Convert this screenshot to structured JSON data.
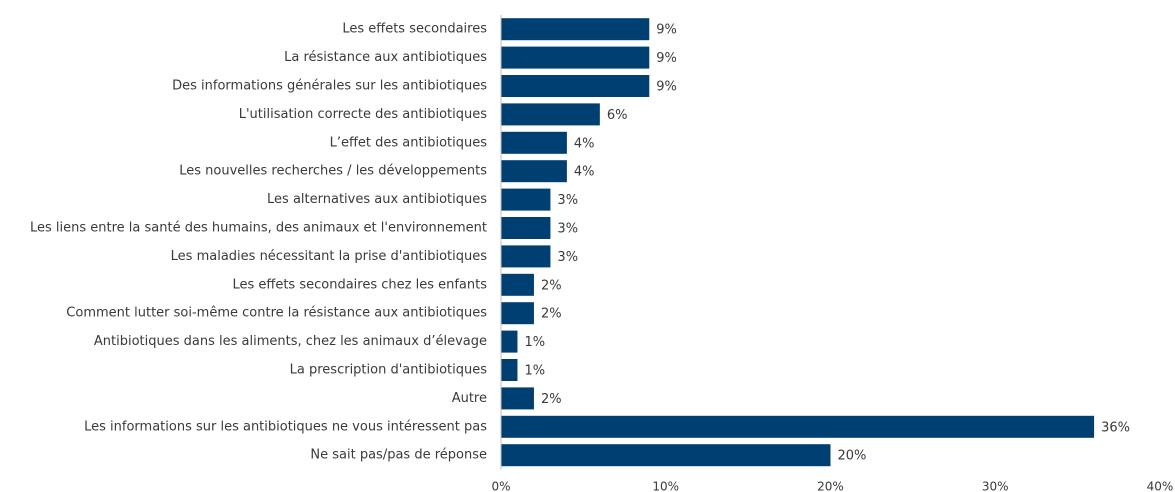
{
  "chart_data": {
    "type": "bar",
    "orientation": "horizontal",
    "categories": [
      "Les effets secondaires",
      "La résistance aux antibiotiques",
      "Des informations générales sur les antibiotiques",
      "L'utilisation correcte des antibiotiques",
      "L’effet des antibiotiques",
      "Les nouvelles recherches / les développements",
      "Les alternatives aux antibiotiques",
      "Les liens entre la santé des humains, des animaux et l'environnement",
      "Les maladies nécessitant la prise d'antibiotiques",
      "Les effets secondaires chez les enfants",
      "Comment lutter soi-même contre la résistance aux antibiotiques",
      "Antibiotiques dans les aliments, chez les animaux d’élevage",
      "La prescription d'antibiotiques",
      "Autre",
      "Les informations sur les antibiotiques ne vous intéressent pas",
      "Ne sait pas/pas de réponse"
    ],
    "values": [
      9,
      9,
      9,
      6,
      4,
      4,
      3,
      3,
      3,
      2,
      2,
      1,
      1,
      2,
      36,
      20
    ],
    "value_labels": [
      "9%",
      "9%",
      "9%",
      "6%",
      "4%",
      "4%",
      "3%",
      "3%",
      "3%",
      "2%",
      "2%",
      "1%",
      "1%",
      "2%",
      "36%",
      "20%"
    ],
    "color": "#003f72",
    "xlim": [
      0,
      40
    ],
    "xticks": [
      {
        "value": 0,
        "label": "0%"
      },
      {
        "value": 10,
        "label": "10%"
      },
      {
        "value": 20,
        "label": "20%"
      },
      {
        "value": 30,
        "label": "30%"
      },
      {
        "value": 40,
        "label": "40%"
      }
    ],
    "grid": false
  }
}
